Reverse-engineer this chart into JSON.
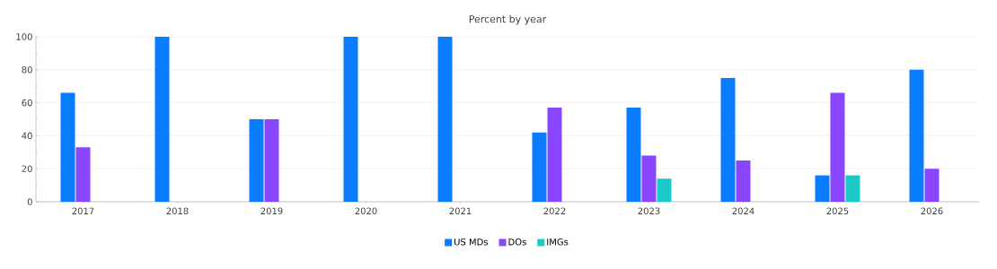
{
  "chart_data": {
    "type": "bar",
    "title": "Percent by year",
    "categories": [
      "2017",
      "2018",
      "2019",
      "2020",
      "2021",
      "2022",
      "2023",
      "2024",
      "2025",
      "2026"
    ],
    "series": [
      {
        "name": "US MDs",
        "color": "#0a7cff",
        "values": [
          66,
          100,
          50,
          100,
          100,
          42,
          57,
          75,
          16,
          80
        ]
      },
      {
        "name": "DOs",
        "color": "#8a45ff",
        "values": [
          33,
          null,
          50,
          null,
          null,
          57,
          28,
          25,
          66,
          20
        ]
      },
      {
        "name": "IMGs",
        "color": "#1cc8c8",
        "values": [
          null,
          null,
          null,
          null,
          null,
          null,
          14,
          null,
          16,
          null
        ]
      }
    ],
    "ylim": [
      0,
      100
    ],
    "yticks": [
      0,
      20,
      40,
      60,
      80,
      100
    ],
    "grid": "y",
    "legend": "bottom"
  }
}
